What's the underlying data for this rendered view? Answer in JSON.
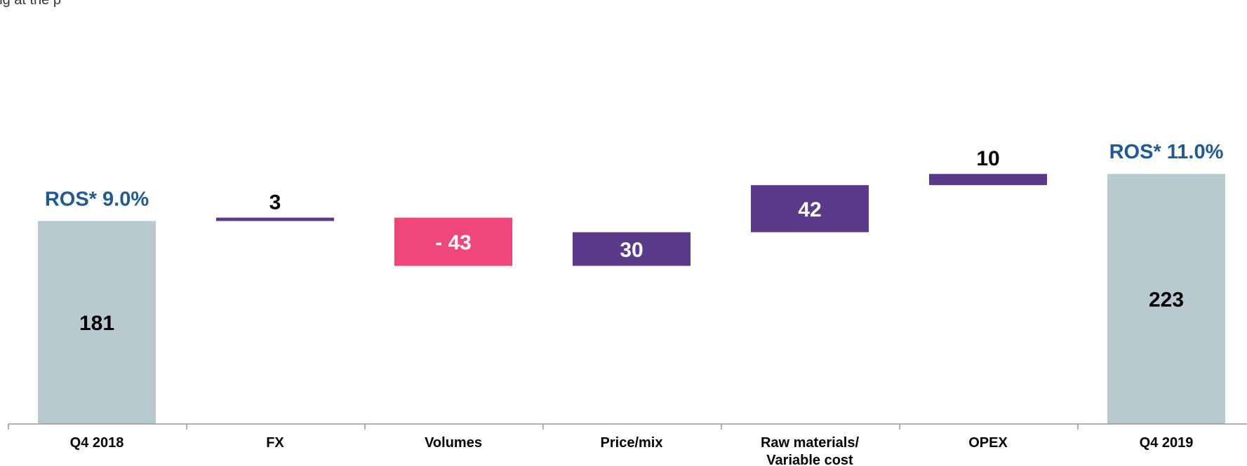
{
  "header_fragment": "ing at the p",
  "chart_data": {
    "type": "waterfall",
    "categories": [
      "Q4 2018",
      "FX",
      "Volumes",
      "Price/mix",
      "Raw materials/\nVariable cost",
      "OPEX",
      "Q4 2019"
    ],
    "steps": [
      {
        "label": "Q4 2018",
        "value": 181,
        "kind": "total",
        "display": "181"
      },
      {
        "label": "FX",
        "value": 3,
        "kind": "increase",
        "display": "3"
      },
      {
        "label": "Volumes",
        "value": -43,
        "kind": "decrease",
        "display": "- 43"
      },
      {
        "label": "Price/mix",
        "value": 30,
        "kind": "increase",
        "display": "30"
      },
      {
        "label": "Raw materials/\nVariable cost",
        "value": 42,
        "kind": "increase",
        "display": "42"
      },
      {
        "label": "OPEX",
        "value": 10,
        "kind": "increase",
        "display": "10"
      },
      {
        "label": "Q4 2019",
        "value": 223,
        "kind": "total",
        "display": "223"
      }
    ],
    "annotations": [
      {
        "text": "ROS* 9.0%",
        "at": "Q4 2018"
      },
      {
        "text": "ROS* 11.0%",
        "at": "Q4 2019"
      }
    ],
    "colors": {
      "total": "#b8c9d0",
      "increase": "#5a3a8a",
      "decrease": "#f0467a",
      "annotation": "#1f5a96",
      "axis": "#999999"
    },
    "ylim": [
      0,
      230
    ],
    "grid": false,
    "legend": "none"
  }
}
